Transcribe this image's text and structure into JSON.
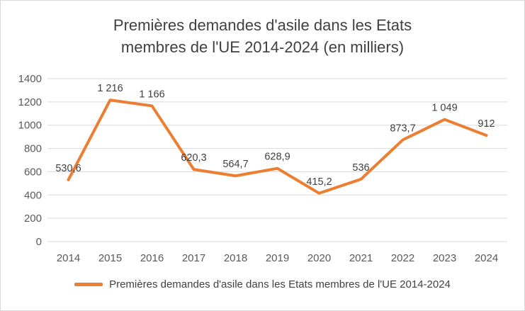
{
  "chart_data": {
    "type": "line",
    "title": "Premières demandes d'asile dans les Etats membres de l'UE 2014-2024 (en milliers)",
    "title_lines": [
      "Premières demandes d'asile dans les Etats",
      "membres de l'UE 2014-2024 (en milliers)"
    ],
    "categories": [
      "2014",
      "2015",
      "2016",
      "2017",
      "2018",
      "2019",
      "2020",
      "2021",
      "2022",
      "2023",
      "2024"
    ],
    "series": [
      {
        "name": "Premières demandes d'asile dans les Etats membres de l'UE 2014-2024",
        "values": [
          530.6,
          1216,
          1166,
          620.3,
          564.7,
          628.9,
          415.2,
          536,
          873.7,
          1049,
          912
        ],
        "labels": [
          "530,6",
          "1 216",
          "1 166",
          "620,3",
          "564,7",
          "628,9",
          "415,2",
          "536",
          "873,7",
          "1 049",
          "912"
        ],
        "color": "#ED7D31"
      }
    ],
    "ylim": [
      0,
      1400
    ],
    "ytick_step": 200,
    "yticks": [
      "0",
      "200",
      "400",
      "600",
      "800",
      "1000",
      "1200",
      "1400"
    ],
    "grid": true,
    "legend_position": "bottom"
  },
  "colors": {
    "line": "#ED7D31",
    "grid": "#D9D9D9",
    "axis_text": "#595959",
    "label_text": "#404040",
    "title_text": "#404040",
    "border": "#D9D9D9"
  }
}
